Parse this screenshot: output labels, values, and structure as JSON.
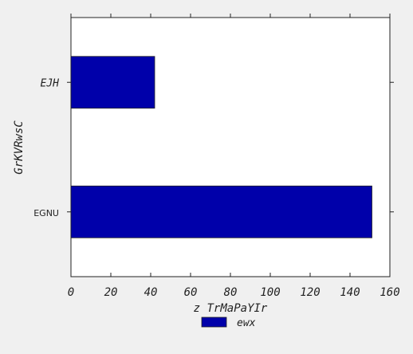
{
  "chart_data": {
    "type": "bar",
    "orientation": "horizontal",
    "categories": [
      "EJH",
      "EGNU"
    ],
    "series": [
      {
        "name": "ewx",
        "values": [
          42,
          151
        ],
        "color": "#0000aa"
      }
    ],
    "xlabel": "z TrMaPaYIr",
    "ylabel": "GrKVRwsC",
    "xlim": [
      0,
      160
    ],
    "xticks": [
      "0",
      "20",
      "40",
      "60",
      "80",
      "100",
      "120",
      "140",
      "160"
    ],
    "grid": false,
    "legend_position": "bottom-center"
  }
}
